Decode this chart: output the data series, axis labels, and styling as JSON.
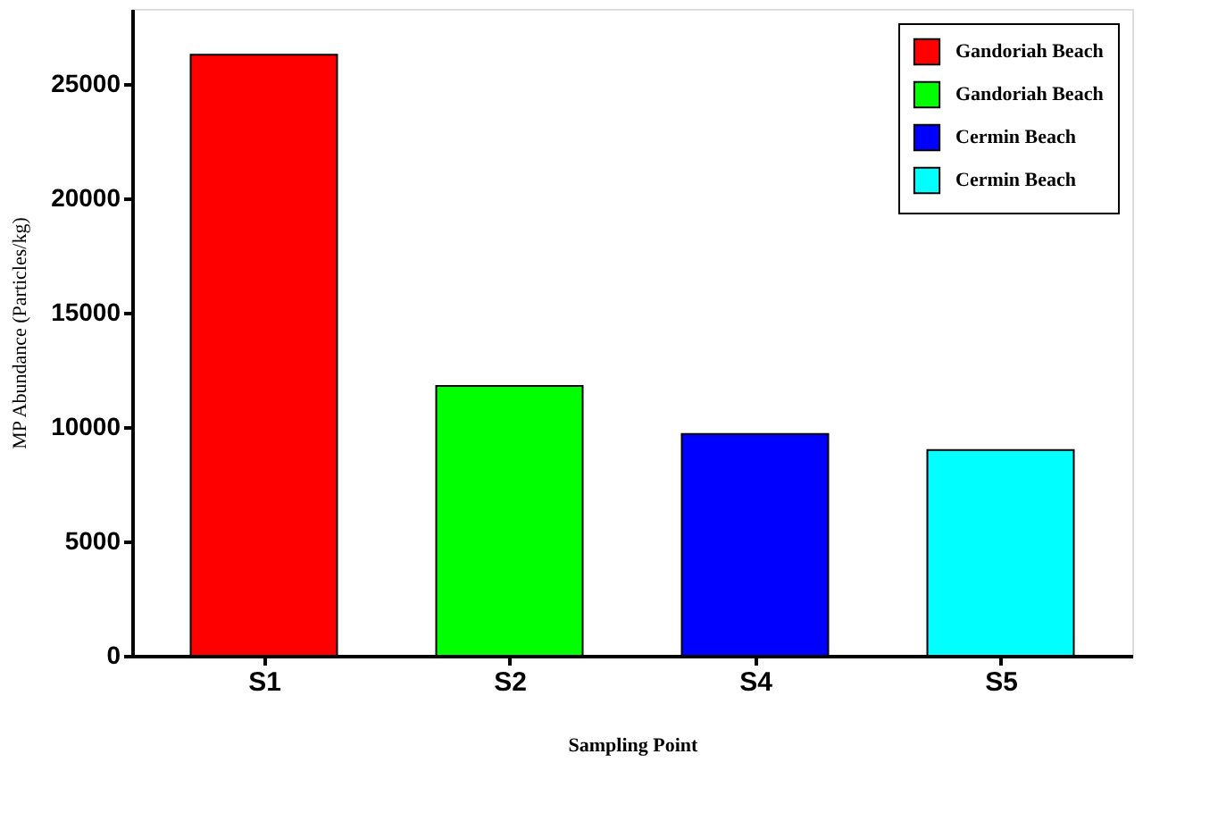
{
  "chart_data": {
    "type": "bar",
    "xlabel": "Sampling Point",
    "ylabel": "MP Abundance (Particles/kg)",
    "categories": [
      "S1",
      "S2",
      "S4",
      "S5"
    ],
    "series": [
      {
        "name": "Gandoriah Beach",
        "color": "#ff0000",
        "values": [
          26300,
          null,
          null,
          null
        ]
      },
      {
        "name": "Gandoriah Beach",
        "color": "#00ff00",
        "values": [
          null,
          11800,
          null,
          null
        ]
      },
      {
        "name": "Cermin Beach",
        "color": "#0000ff",
        "values": [
          null,
          null,
          9700,
          null
        ]
      },
      {
        "name": "Cermin Beach",
        "color": "#00ffff",
        "values": [
          null,
          null,
          null,
          9000
        ]
      }
    ],
    "ylim": [
      0,
      28300
    ],
    "yticks": [
      0,
      5000,
      10000,
      15000,
      20000,
      25000
    ],
    "grid": false,
    "legend": "top right"
  }
}
